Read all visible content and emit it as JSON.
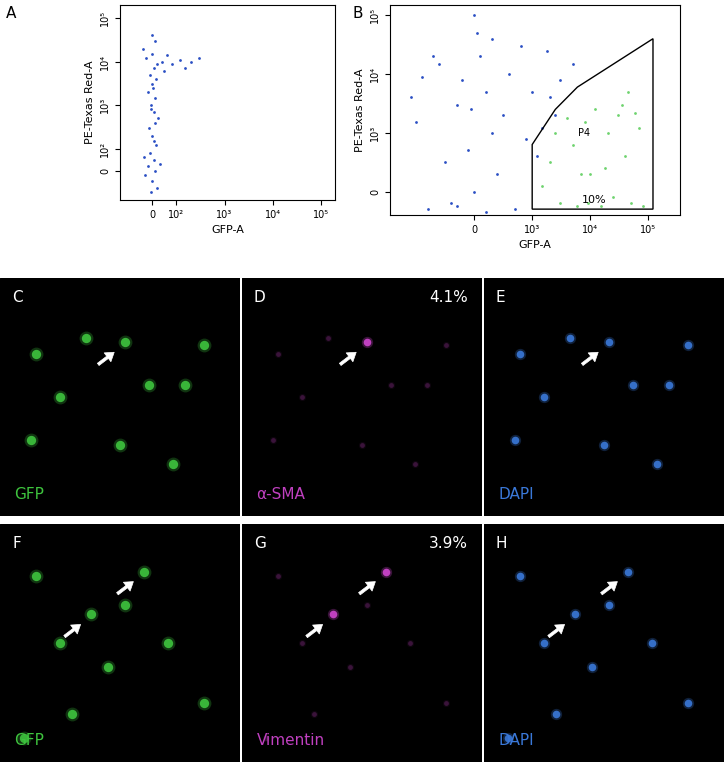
{
  "chart_data": [
    {
      "type": "scatter",
      "panel": "A",
      "xlabel": "GFP-A",
      "ylabel": "PE-Texas Red-A",
      "log": true,
      "grid": false,
      "xlim": [
        -150,
        200000
      ],
      "ylim": [
        -150,
        200000
      ],
      "xticks": [
        0,
        {
          "value": 100,
          "label": "10²"
        },
        {
          "value": 1000,
          "label": "10³"
        },
        {
          "value": 10000,
          "label": "10⁴"
        },
        {
          "value": 100000,
          "label": "10⁵"
        }
      ],
      "yticks": [
        0,
        {
          "value": 100,
          "label": "10²"
        },
        {
          "value": 1000,
          "label": "10³"
        },
        {
          "value": 10000,
          "label": "10⁴"
        },
        {
          "value": 100000,
          "label": "10⁵"
        }
      ],
      "series": [
        {
          "color": "#2b4fc4",
          "x": [
            0,
            10,
            -20,
            5,
            -10,
            20,
            -30,
            15,
            0,
            -15,
            25,
            5,
            -5,
            10,
            -20,
            0,
            15,
            -10,
            5,
            20,
            -25,
            0,
            40,
            80,
            120,
            200,
            300,
            60,
            -40,
            10,
            0,
            -5,
            30,
            -35,
            8,
            12,
            -8,
            3,
            50,
            150
          ],
          "y": [
            -50,
            0,
            20,
            50,
            80,
            -80,
            -20,
            120,
            200,
            300,
            500,
            700,
            1000,
            1500,
            2000,
            3000,
            4000,
            5000,
            7000,
            9000,
            12000,
            15000,
            10000,
            9000,
            11000,
            10000,
            12000,
            14000,
            20000,
            30000,
            40000,
            -100,
            30,
            60,
            150,
            400,
            800,
            2500,
            6000,
            7000
          ]
        }
      ]
    },
    {
      "type": "scatter",
      "panel": "B",
      "xlabel": "GFP-A",
      "ylabel": "PE-Texas Red-A",
      "log": true,
      "grid": false,
      "xlim": [
        -2800,
        350000
      ],
      "ylim": [
        -400,
        150000
      ],
      "xticks": [
        0,
        {
          "value": 1000,
          "label": "10³"
        },
        {
          "value": 10000,
          "label": "10⁴"
        },
        {
          "value": 100000,
          "label": "10⁵"
        }
      ],
      "yticks": [
        0,
        {
          "value": 1000,
          "label": "10³"
        },
        {
          "value": 10000,
          "label": "10⁴"
        },
        {
          "value": 100000,
          "label": "10⁵"
        }
      ],
      "series": [
        {
          "color": "#2b4fc4",
          "x": [
            0,
            -500,
            300,
            -800,
            200,
            500,
            -300,
            1000,
            -200,
            600,
            2000,
            -1000,
            100,
            -600,
            800,
            3000,
            1500,
            -400,
            400,
            2500,
            -1200,
            50,
            -100,
            700,
            5000,
            1200,
            -700,
            300,
            0,
            -900,
            1800,
            200,
            -300,
            900,
            -50
          ],
          "y": [
            0,
            500,
            1000,
            -300,
            -350,
            2000,
            3000,
            5000,
            8000,
            10000,
            4000,
            1500,
            20000,
            15000,
            30000,
            8000,
            1200,
            -200,
            300,
            2000,
            4000,
            50000,
            700,
            -300,
            15000,
            600,
            20000,
            40000,
            100000,
            9000,
            25000,
            5000,
            -250,
            900,
            2500
          ]
        },
        {
          "color": "#6fd36f",
          "x": [
            2000,
            3000,
            5000,
            8000,
            10000,
            15000,
            20000,
            30000,
            40000,
            50000,
            70000,
            4000,
            6000,
            12000,
            25000,
            35000,
            1500,
            9000,
            18000,
            60000,
            80000,
            2500,
            45000,
            7000
          ],
          "y": [
            500,
            -200,
            800,
            1500,
            300,
            -250,
            1000,
            2000,
            600,
            -200,
            1200,
            1800,
            -250,
            2500,
            -100,
            3000,
            100,
            -200,
            400,
            2200,
            -250,
            1000,
            5000,
            300
          ]
        }
      ],
      "gate": {
        "name": "P4",
        "label": "10%",
        "x": [
          1000,
          1000,
          2500,
          6000,
          120000,
          120000
        ],
        "y": [
          -300,
          800,
          2500,
          6000,
          40000,
          -300
        ]
      }
    }
  ],
  "images": [
    {
      "panel": "C",
      "label": "GFP",
      "color": "#3ec43e"
    },
    {
      "panel": "D",
      "label": "α-SMA",
      "color": "#c040c0",
      "value": 4.1,
      "value_label": "4.1%"
    },
    {
      "panel": "E",
      "label": "DAPI",
      "color": "#3a78d8"
    },
    {
      "panel": "F",
      "label": "GFP",
      "color": "#3ec43e"
    },
    {
      "panel": "G",
      "label": "Vimentin",
      "color": "#c040c0",
      "value": 3.9,
      "value_label": "3.9%"
    },
    {
      "panel": "H",
      "label": "DAPI",
      "color": "#3a78d8"
    }
  ]
}
